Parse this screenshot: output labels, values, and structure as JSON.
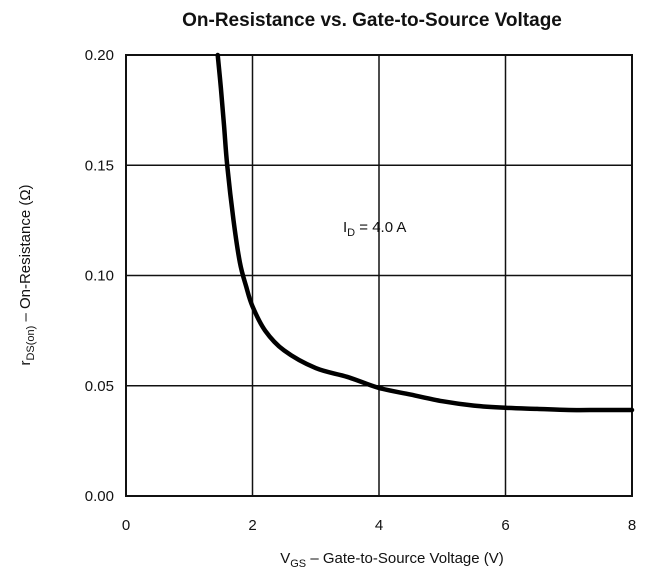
{
  "chart_data": {
    "type": "line",
    "title": "On-Resistance vs. Gate-to-Source Voltage",
    "xlabel": {
      "main": "V",
      "sub": "GS",
      "rest": " – Gate-to-Source Voltage (V)"
    },
    "ylabel": {
      "main": "r",
      "sub": "DS(on)",
      "rest": "  –  On-Resistance (Ω)"
    },
    "xlim": [
      0,
      8
    ],
    "ylim": [
      0,
      0.2
    ],
    "x_ticks": [
      "0",
      "2",
      "4",
      "6",
      "8"
    ],
    "y_ticks": [
      "0.00",
      "0.05",
      "0.10",
      "0.15",
      "0.20"
    ],
    "grid": true,
    "annotation": {
      "main": "I",
      "sub": "D",
      "rest": " =  4.0 A"
    },
    "series": [
      {
        "x": [
          1.45,
          1.5,
          1.55,
          1.6,
          1.7,
          1.8,
          1.9,
          2.0,
          2.2,
          2.5,
          3.0,
          3.5,
          4.0,
          4.5,
          5.0,
          5.5,
          6.0,
          6.5,
          7.0,
          7.5,
          8.0
        ],
        "y": [
          0.2,
          0.185,
          0.168,
          0.15,
          0.125,
          0.106,
          0.095,
          0.086,
          0.075,
          0.066,
          0.058,
          0.054,
          0.049,
          0.046,
          0.043,
          0.041,
          0.04,
          0.0395,
          0.039,
          0.039,
          0.039
        ]
      }
    ]
  }
}
